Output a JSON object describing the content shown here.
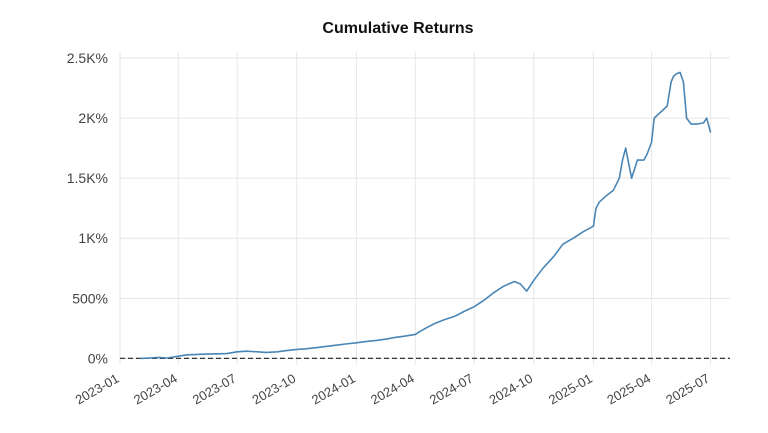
{
  "chart_data": {
    "type": "line",
    "title": "Cumulative Returns",
    "xlabel": "",
    "ylabel": "",
    "x_tick_labels": [
      "2023-01",
      "2023-04",
      "2023-07",
      "2023-10",
      "2024-01",
      "2024-04",
      "2024-07",
      "2024-10",
      "2025-01",
      "2025-04",
      "2025-07"
    ],
    "y_ticks": [
      0,
      500,
      1000,
      1500,
      2000,
      2500
    ],
    "y_tick_labels": [
      "0%",
      "500%",
      "1K%",
      "1.5K%",
      "2K%",
      "2.5K%"
    ],
    "ylim": [
      -55,
      2550
    ],
    "xlim": [
      "2023-01-01",
      "2025-07-31"
    ],
    "grid": true,
    "baseline": {
      "y": 0,
      "style": "dashed",
      "color": "#333333"
    },
    "series": [
      {
        "color": "#4a86b5",
        "x": [
          "2023-02-01",
          "2023-02-15",
          "2023-03-01",
          "2023-03-15",
          "2023-04-01",
          "2023-04-15",
          "2023-05-01",
          "2023-05-15",
          "2023-06-01",
          "2023-06-15",
          "2023-07-01",
          "2023-07-15",
          "2023-08-01",
          "2023-08-15",
          "2023-09-01",
          "2023-09-15",
          "2023-10-01",
          "2023-10-15",
          "2023-11-01",
          "2023-11-15",
          "2023-12-01",
          "2023-12-15",
          "2024-01-01",
          "2024-01-15",
          "2024-02-01",
          "2024-02-15",
          "2024-03-01",
          "2024-03-15",
          "2024-04-01",
          "2024-04-10",
          "2024-04-20",
          "2024-05-01",
          "2024-05-15",
          "2024-06-01",
          "2024-06-15",
          "2024-07-01",
          "2024-07-15",
          "2024-08-01",
          "2024-08-15",
          "2024-09-01",
          "2024-09-10",
          "2024-09-20",
          "2024-10-01",
          "2024-10-15",
          "2024-11-01",
          "2024-11-15",
          "2024-12-01",
          "2024-12-15",
          "2025-01-01",
          "2025-01-05",
          "2025-01-10",
          "2025-01-20",
          "2025-02-01",
          "2025-02-10",
          "2025-02-15",
          "2025-02-20",
          "2025-03-01",
          "2025-03-10",
          "2025-03-20",
          "2025-03-25",
          "2025-04-01",
          "2025-04-05",
          "2025-04-15",
          "2025-04-25",
          "2025-05-01",
          "2025-05-05",
          "2025-05-10",
          "2025-05-15",
          "2025-05-20",
          "2025-05-25",
          "2025-06-01",
          "2025-06-10",
          "2025-06-20",
          "2025-06-25",
          "2025-07-01"
        ],
        "values": [
          0,
          3,
          8,
          3,
          18,
          30,
          33,
          36,
          38,
          40,
          55,
          60,
          55,
          50,
          55,
          65,
          75,
          80,
          90,
          100,
          110,
          120,
          130,
          140,
          150,
          160,
          175,
          185,
          200,
          230,
          260,
          290,
          320,
          350,
          390,
          430,
          480,
          550,
          600,
          640,
          620,
          560,
          650,
          750,
          850,
          950,
          1000,
          1050,
          1100,
          1250,
          1300,
          1350,
          1400,
          1500,
          1650,
          1750,
          1500,
          1650,
          1650,
          1700,
          1800,
          2000,
          2050,
          2100,
          2300,
          2350,
          2370,
          2380,
          2300,
          2000,
          1950,
          1950,
          1960,
          2000,
          1880
        ]
      }
    ]
  }
}
